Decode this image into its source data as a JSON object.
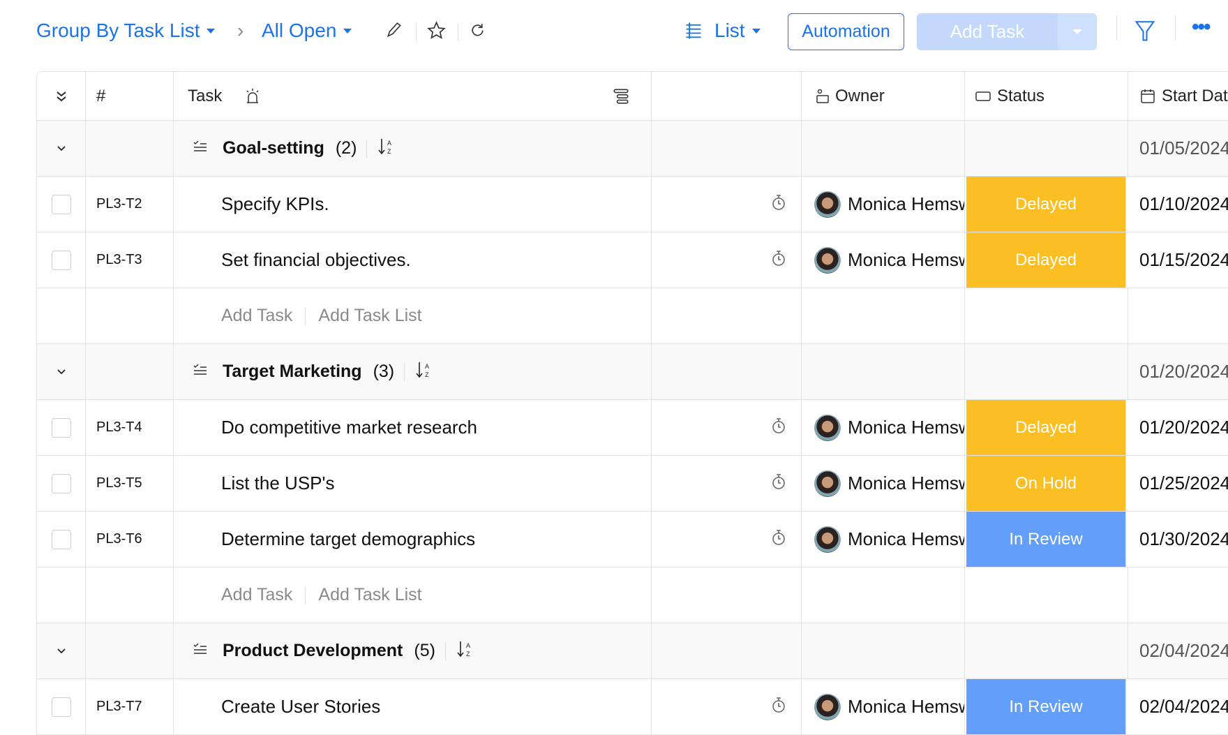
{
  "toolbar": {
    "group_by": "Group By Task List",
    "view_filter": "All Open",
    "layout": "List",
    "automation": "Automation",
    "add_task": "Add Task"
  },
  "columns": {
    "number": "#",
    "task": "Task",
    "owner": "Owner",
    "status": "Status",
    "start_date": "Start Dat"
  },
  "status_colors": {
    "Delayed": "#fbbf24",
    "On Hold": "#fbbf24",
    "In Review": "#639efb"
  },
  "add_row": {
    "add_task": "Add Task",
    "add_task_list": "Add Task List"
  },
  "groups": [
    {
      "name": "Goal-setting",
      "count": "(2)",
      "start_date": "01/05/2024",
      "tasks": [
        {
          "id": "PL3-T2",
          "name": "Specify KPIs.",
          "owner": "Monica Hemsworth",
          "status": "Delayed",
          "start_date": "01/10/2024"
        },
        {
          "id": "PL3-T3",
          "name": "Set financial objectives.",
          "owner": "Monica Hemsworth",
          "status": "Delayed",
          "start_date": "01/15/2024"
        }
      ]
    },
    {
      "name": "Target Marketing",
      "count": "(3)",
      "start_date": "01/20/2024",
      "tasks": [
        {
          "id": "PL3-T4",
          "name": "Do competitive market research",
          "owner": "Monica Hemsworth",
          "status": "Delayed",
          "start_date": "01/20/2024"
        },
        {
          "id": "PL3-T5",
          "name": "List the USP's",
          "owner": "Monica Hemsworth",
          "status": "On Hold",
          "start_date": "01/25/2024"
        },
        {
          "id": "PL3-T6",
          "name": "Determine target demographics",
          "owner": "Monica Hemsworth",
          "status": "In Review",
          "start_date": "01/30/2024"
        }
      ]
    },
    {
      "name": "Product Development",
      "count": "(5)",
      "start_date": "02/04/2024",
      "tasks": [
        {
          "id": "PL3-T7",
          "name": "Create User Stories",
          "owner": "Monica Hemsworth",
          "status": "In Review",
          "start_date": "02/04/2024"
        }
      ]
    }
  ]
}
